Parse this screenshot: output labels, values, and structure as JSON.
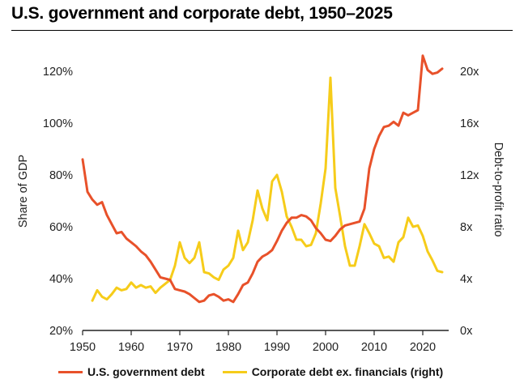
{
  "chart_data": {
    "type": "line",
    "title": "U.S. government and corporate debt, 1950–2025",
    "xlabel": "",
    "ylabel": "Share of GDP",
    "y2label": "Debt-to-profit ratio",
    "xlim": [
      1950,
      2025
    ],
    "ylim": [
      20,
      120
    ],
    "y2lim": [
      0,
      20
    ],
    "x_ticks": [
      1950,
      1960,
      1970,
      1980,
      1990,
      2000,
      2010,
      2020
    ],
    "y_ticks": [
      20,
      40,
      60,
      80,
      100,
      120
    ],
    "y_tick_labels": [
      "20%",
      "40%",
      "60%",
      "80%",
      "100%",
      "120%"
    ],
    "y2_ticks": [
      0,
      4,
      8,
      12,
      16,
      20
    ],
    "y2_tick_labels": [
      "0x",
      "4x",
      "8x",
      "12x",
      "16x",
      "20x"
    ],
    "legend_position": "bottom",
    "series": [
      {
        "name": "U.S. government debt",
        "axis": "left",
        "color": "#E8512A",
        "x": [
          1950,
          1951,
          1952,
          1953,
          1954,
          1955,
          1956,
          1957,
          1958,
          1959,
          1960,
          1961,
          1962,
          1963,
          1964,
          1965,
          1966,
          1967,
          1968,
          1969,
          1970,
          1971,
          1972,
          1973,
          1974,
          1975,
          1976,
          1977,
          1978,
          1979,
          1980,
          1981,
          1982,
          1983,
          1984,
          1985,
          1986,
          1987,
          1988,
          1989,
          1990,
          1991,
          1992,
          1993,
          1994,
          1995,
          1996,
          1997,
          1998,
          1999,
          2000,
          2001,
          2002,
          2003,
          2004,
          2005,
          2006,
          2007,
          2008,
          2009,
          2010,
          2011,
          2012,
          2013,
          2014,
          2015,
          2016,
          2017,
          2018,
          2019,
          2020,
          2021,
          2022,
          2023,
          2024
        ],
        "values": [
          86,
          73.5,
          70.5,
          68.5,
          69.5,
          64.5,
          61,
          57.5,
          58,
          55.5,
          54,
          52.5,
          50.5,
          49,
          46.5,
          43.5,
          40.5,
          40,
          39.5,
          36,
          35.5,
          35,
          34,
          32.5,
          31,
          31.5,
          33.5,
          34,
          33,
          31.5,
          32,
          31,
          34,
          37.5,
          38.5,
          42,
          46.5,
          48.5,
          49.5,
          51,
          54.5,
          58.5,
          61.5,
          63.5,
          63.5,
          64.5,
          64,
          62.5,
          59.5,
          57.5,
          55,
          54.5,
          56.5,
          59,
          60.5,
          61,
          61.5,
          62,
          67,
          82.5,
          90,
          95,
          98.5,
          99,
          100.5,
          99,
          104,
          103,
          104,
          105,
          126,
          120.5,
          119,
          119.5,
          121
        ]
      },
      {
        "name": "Corporate debt ex. financials (right)",
        "axis": "right",
        "color": "#F6CC1A",
        "x": [
          1952,
          1953,
          1954,
          1955,
          1956,
          1957,
          1958,
          1959,
          1960,
          1961,
          1962,
          1963,
          1964,
          1965,
          1966,
          1967,
          1968,
          1969,
          1970,
          1971,
          1972,
          1973,
          1974,
          1975,
          1976,
          1977,
          1978,
          1979,
          1980,
          1981,
          1982,
          1983,
          1984,
          1985,
          1986,
          1987,
          1988,
          1989,
          1990,
          1991,
          1992,
          1993,
          1994,
          1995,
          1996,
          1997,
          1998,
          1999,
          2000,
          2001,
          2002,
          2003,
          2004,
          2005,
          2006,
          2007,
          2008,
          2009,
          2010,
          2011,
          2012,
          2013,
          2014,
          2015,
          2016,
          2017,
          2018,
          2019,
          2020,
          2021,
          2022,
          2023,
          2024
        ],
        "values": [
          2.3,
          3.1,
          2.6,
          2.4,
          2.8,
          3.3,
          3.1,
          3.2,
          3.7,
          3.3,
          3.5,
          3.3,
          3.4,
          2.9,
          3.3,
          3.6,
          3.9,
          5.0,
          6.8,
          5.6,
          5.2,
          5.6,
          6.8,
          4.5,
          4.4,
          4.1,
          3.9,
          4.7,
          5.0,
          5.6,
          7.7,
          6.2,
          6.8,
          8.5,
          10.8,
          9.4,
          8.5,
          11.5,
          12.0,
          10.7,
          8.8,
          8.0,
          7.0,
          7.0,
          6.5,
          6.6,
          7.5,
          9.8,
          12.5,
          19.5,
          11.0,
          8.8,
          6.5,
          5.0,
          5.0,
          6.5,
          8.2,
          7.5,
          6.7,
          6.5,
          5.6,
          5.7,
          5.3,
          6.8,
          7.2,
          8.7,
          8.0,
          8.1,
          7.3,
          6.1,
          5.4,
          4.6,
          4.5
        ]
      }
    ]
  }
}
